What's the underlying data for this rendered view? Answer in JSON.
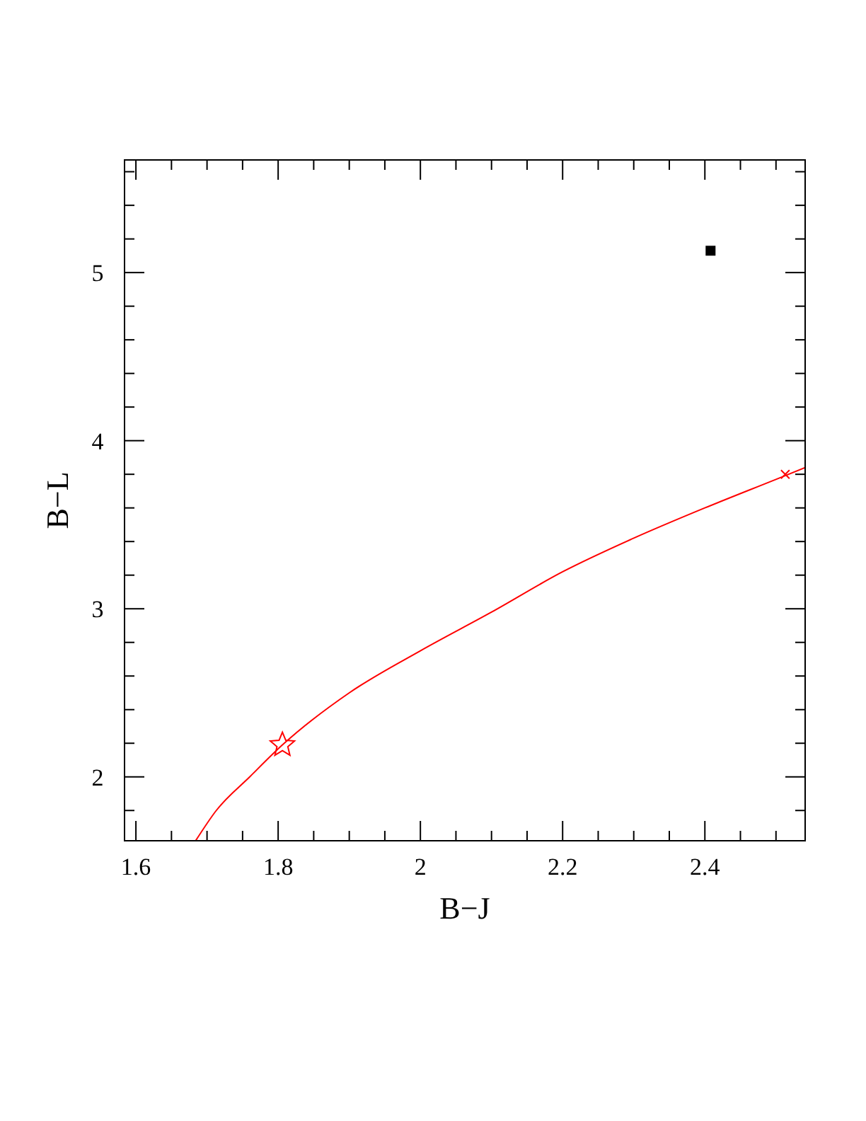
{
  "chart_data": {
    "type": "line",
    "xlabel": "B−J",
    "ylabel": "B−L",
    "xlim": [
      1.584,
      2.541
    ],
    "ylim": [
      1.62,
      5.67
    ],
    "xticks": [
      {
        "value": 1.6,
        "label": "1.6"
      },
      {
        "value": 1.65,
        "label": null
      },
      {
        "value": 1.7,
        "label": null
      },
      {
        "value": 1.75,
        "label": null
      },
      {
        "value": 1.8,
        "label": "1.8"
      },
      {
        "value": 1.85,
        "label": null
      },
      {
        "value": 1.9,
        "label": null
      },
      {
        "value": 1.95,
        "label": null
      },
      2,
      {
        "value": 2.05,
        "label": null
      },
      {
        "value": 2.1,
        "label": null
      },
      {
        "value": 2.15,
        "label": null
      },
      {
        "value": 2.2,
        "label": "2.2"
      },
      {
        "value": 2.25,
        "label": null
      },
      {
        "value": 2.3,
        "label": null
      },
      {
        "value": 2.35,
        "label": null
      },
      {
        "value": 2.4,
        "label": "2.4"
      },
      {
        "value": 2.45,
        "label": null
      },
      {
        "value": 2.5,
        "label": null
      }
    ],
    "yticks": [
      {
        "value": 1.8,
        "label": null
      },
      2,
      {
        "value": 2.2,
        "label": null
      },
      {
        "value": 2.4,
        "label": null
      },
      {
        "value": 2.6,
        "label": null
      },
      {
        "value": 2.8,
        "label": null
      },
      3,
      {
        "value": 3.2,
        "label": null
      },
      {
        "value": 3.4,
        "label": null
      },
      {
        "value": 3.6,
        "label": null
      },
      {
        "value": 3.8,
        "label": null
      },
      4,
      {
        "value": 4.2,
        "label": null
      },
      {
        "value": 4.4,
        "label": null
      },
      {
        "value": 4.6,
        "label": null
      },
      {
        "value": 4.8,
        "label": null
      },
      5,
      {
        "value": 5.2,
        "label": null
      },
      {
        "value": 5.4,
        "label": null
      },
      {
        "value": 5.6,
        "label": null
      }
    ],
    "grid": false,
    "series": [
      {
        "color": "#ff0000",
        "marker": "none",
        "line_style": "solid",
        "x": [
          1.684,
          1.713,
          1.76,
          1.806,
          1.9,
          2.0,
          2.1,
          2.2,
          2.3,
          2.4,
          2.5,
          2.541
        ],
        "values": [
          1.62,
          1.8,
          2.0,
          2.19,
          2.5,
          2.75,
          2.98,
          3.22,
          3.42,
          3.6,
          3.77,
          3.84
        ]
      },
      {
        "type": "scatter",
        "color": "#ff0000",
        "marker": "star",
        "x": [
          1.806
        ],
        "values": [
          2.19
        ]
      },
      {
        "type": "scatter",
        "color": "#ff0000",
        "marker": "cross",
        "x": [
          2.513
        ],
        "values": [
          3.8
        ]
      },
      {
        "type": "scatter",
        "color": "#000000",
        "marker": "square",
        "x": [
          2.408
        ],
        "values": [
          5.13
        ]
      }
    ]
  }
}
